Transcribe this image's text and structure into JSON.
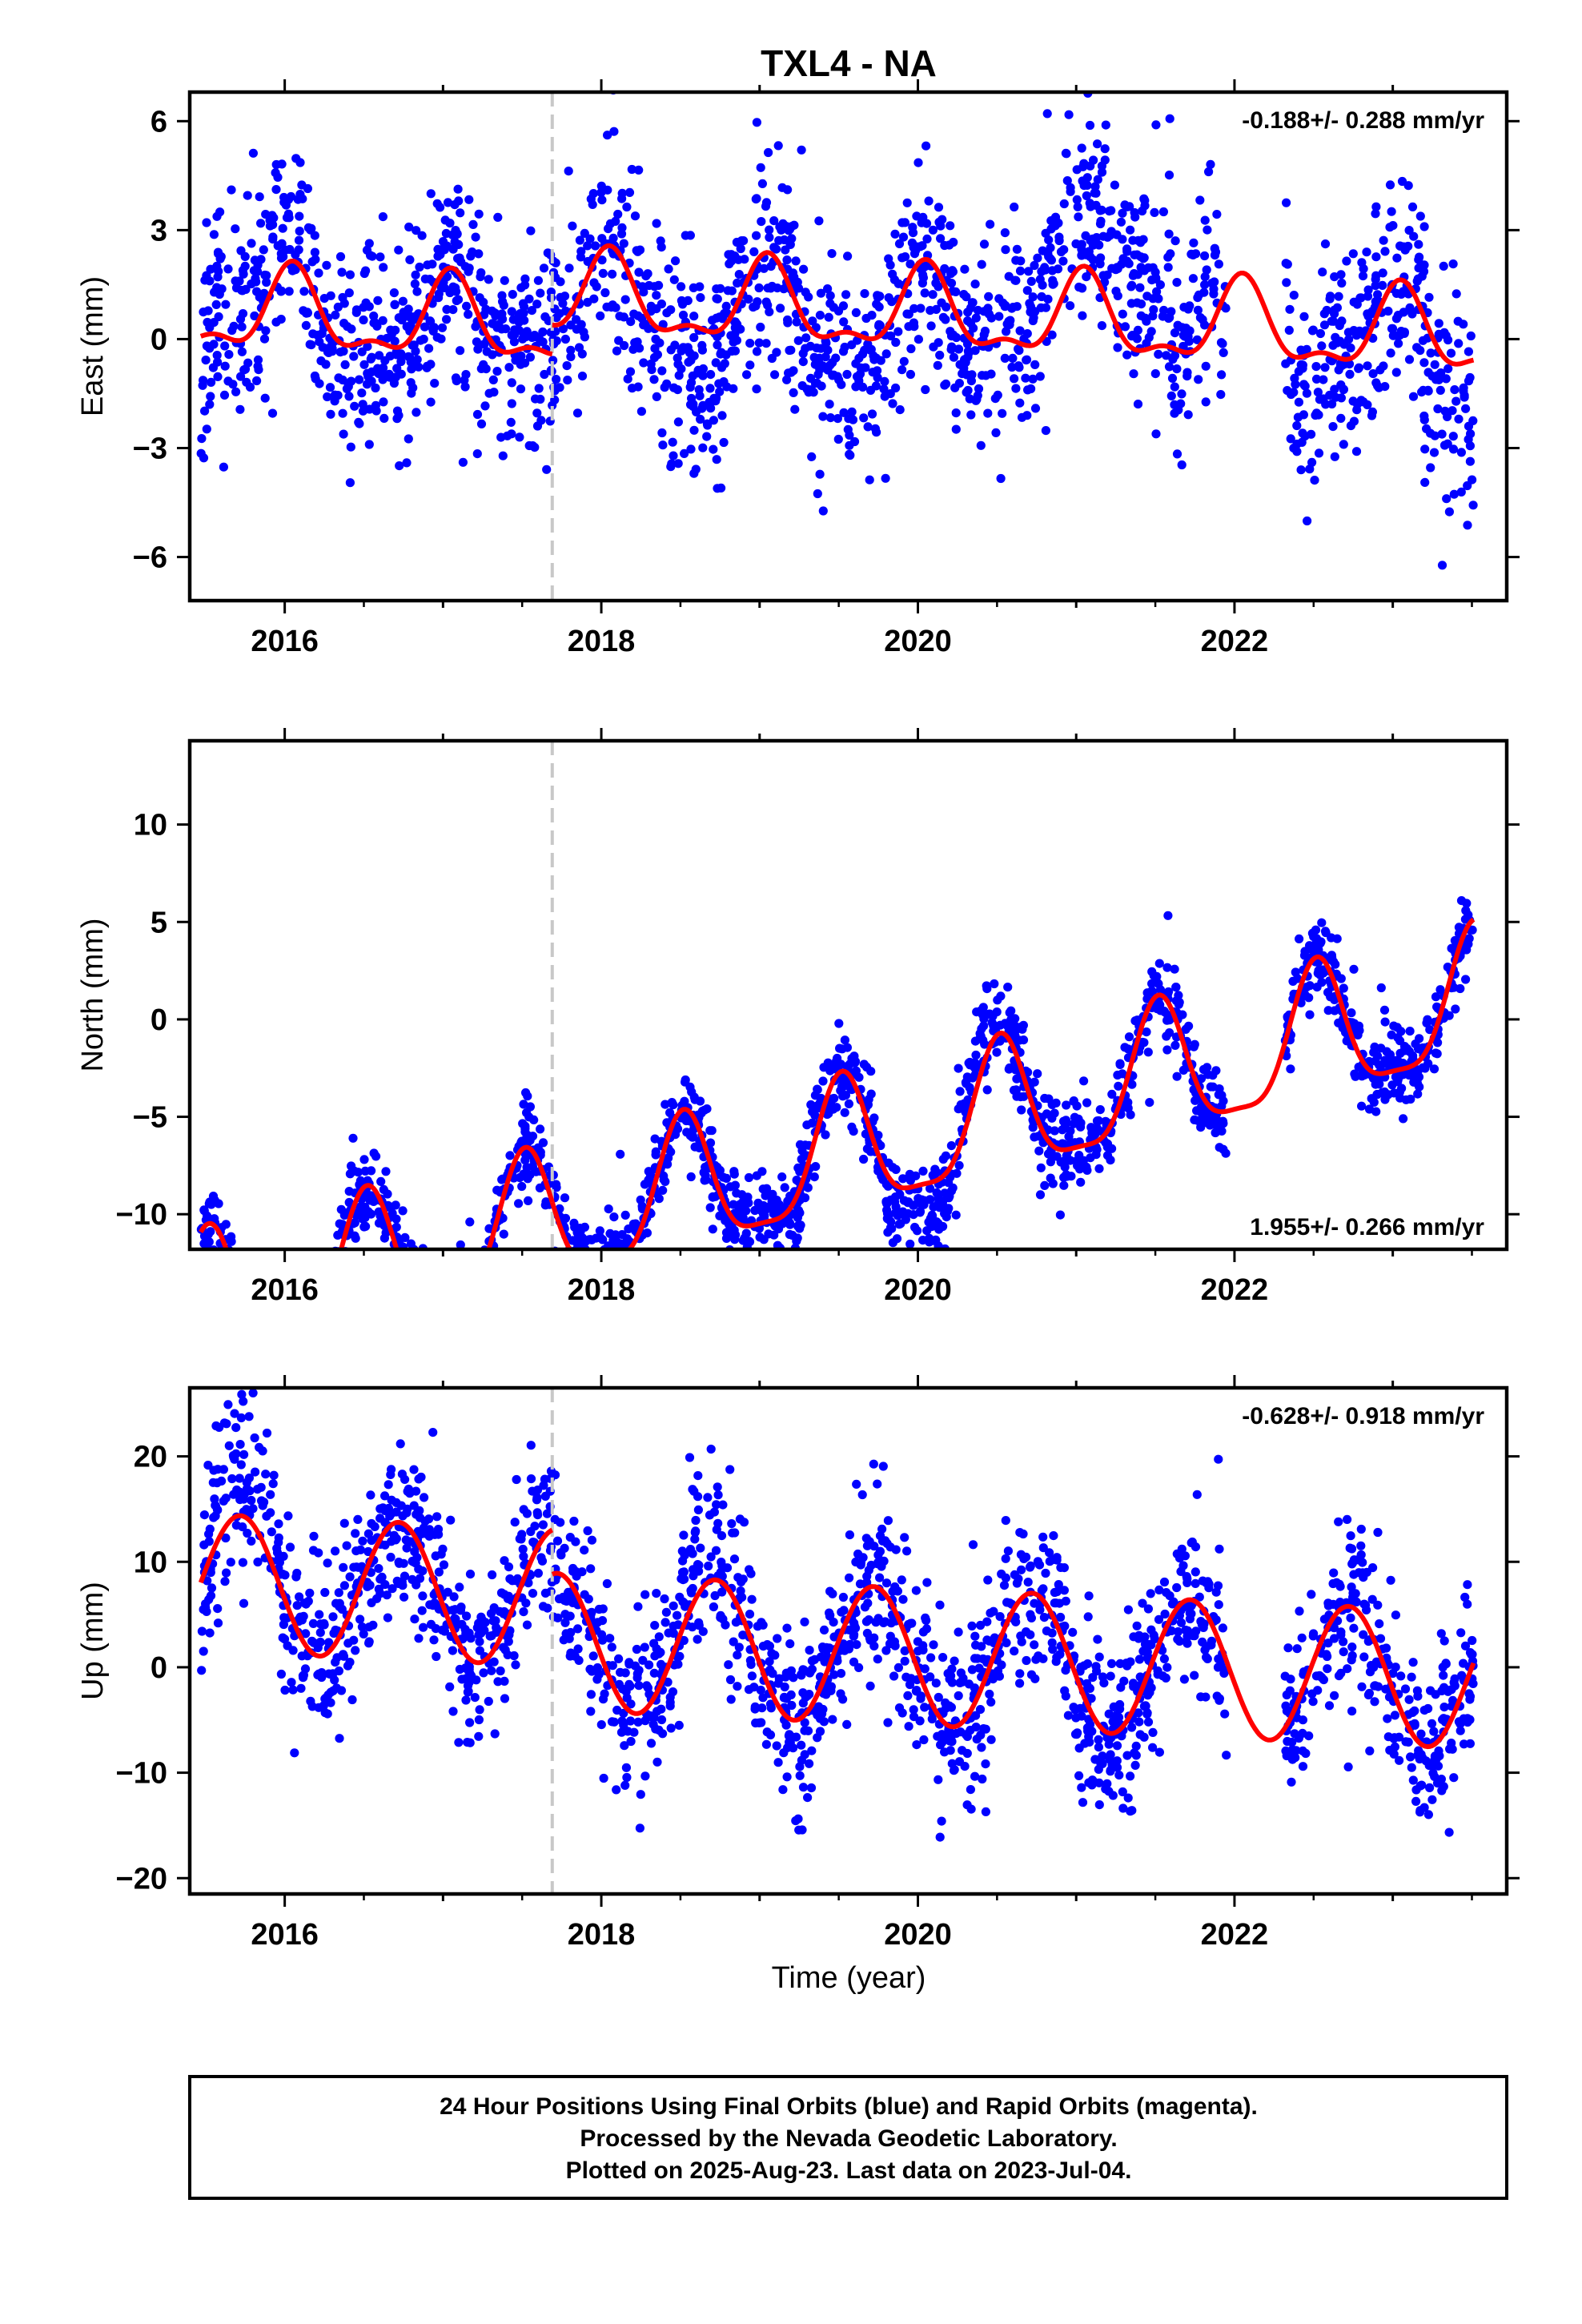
{
  "title": "TXL4 - NA",
  "xlabel": "Time (year)",
  "footer": {
    "line1": "24 Hour Positions Using Final Orbits (blue) and Rapid Orbits (magenta).",
    "line2": "Processed by the Nevada Geodetic Laboratory.",
    "line3": "Plotted on 2025-Aug-23. Last data on 2023-Jul-04."
  },
  "colors": {
    "points": "#0000ff",
    "model": "#ff0000",
    "event_line": "#c8c8c8",
    "axes": "#000000"
  },
  "chart_data": [
    {
      "type": "scatter",
      "panel": "east",
      "ylabel": "East (mm)",
      "rate": "-0.188+/- 0.288 mm/yr",
      "rate_position": "top-right",
      "xlim": [
        2015.4,
        2023.72
      ],
      "ylim": [
        -7.2,
        6.8
      ],
      "xticks": [
        2016,
        2018,
        2020,
        2022
      ],
      "xtick_labels": [
        "2016",
        "2018",
        "2020",
        "2022"
      ],
      "yticks": [
        -6,
        -3,
        0,
        3,
        6
      ],
      "ytick_labels": [
        "−6",
        "−3",
        "0",
        "3",
        "6"
      ],
      "event_line_x": 2017.69,
      "data_range": [
        2015.47,
        2023.51
      ],
      "model": {
        "trend_intercept": 0.0,
        "trend_slope": -0.188,
        "seasonal": [
          {
            "period_yr": 1.0,
            "amplitude": 1.05,
            "peak_year": 2016.05
          },
          {
            "period_yr": 0.5,
            "amplitude": 0.45,
            "peak_year": 2016.05
          }
        ],
        "offset_after_event": 0.8
      },
      "scatter_sigma": 1.45,
      "seasonal_anomalies": [
        {
          "start": 2020.75,
          "end": 2021.6,
          "shift": 1.9
        },
        {
          "start": 2021.7,
          "end": 2021.9,
          "shift": 1.4
        },
        {
          "start": 2015.55,
          "end": 2016.1,
          "shift": 0.8
        },
        {
          "start": 2016.2,
          "end": 2016.5,
          "shift": -0.6
        },
        {
          "start": 2018.4,
          "end": 2018.8,
          "shift": -1.0
        },
        {
          "start": 2019.3,
          "end": 2019.8,
          "shift": -0.9
        },
        {
          "start": 2022.35,
          "end": 2022.55,
          "shift": -1.5
        },
        {
          "start": 2023.2,
          "end": 2023.52,
          "shift": -1.6
        }
      ],
      "gaps": [
        [
          2021.95,
          2022.32
        ]
      ],
      "n_points": 2100,
      "seed": 11
    },
    {
      "type": "scatter",
      "panel": "north",
      "ylabel": "North (mm)",
      "rate": "1.955+/- 0.266 mm/yr",
      "rate_position": "bottom-right",
      "xlim": [
        2015.4,
        2023.72
      ],
      "ylim": [
        -11.8,
        14.3
      ],
      "xticks": [
        2016,
        2018,
        2020,
        2022
      ],
      "xtick_labels": [
        "2016",
        "2018",
        "2020",
        "2022"
      ],
      "yticks": [
        -10,
        -5,
        0,
        5,
        10
      ],
      "ytick_labels": [
        "−10",
        "−5",
        "0",
        "5",
        "10"
      ],
      "event_line_x": 2017.69,
      "data_range": [
        2015.47,
        2023.51
      ],
      "model": {
        "trend_intercept": -7.0,
        "trend_slope": 1.955,
        "seasonal": [
          {
            "period_yr": 1.0,
            "amplitude": 3.4,
            "peak_year": 2016.52
          },
          {
            "period_yr": 0.5,
            "amplitude": 0.9,
            "peak_year": 2016.52
          }
        ],
        "offset_after_event": 0.0
      },
      "scatter_sigma": 1.1,
      "seasonal_anomalies": [
        {
          "start": 2020.25,
          "end": 2020.55,
          "shift": 1.5
        },
        {
          "start": 2019.8,
          "end": 2020.2,
          "shift": -1.2
        }
      ],
      "gaps": [
        [
          2021.95,
          2022.32
        ]
      ],
      "n_points": 2100,
      "seed": 23
    },
    {
      "type": "scatter",
      "panel": "up",
      "ylabel": "Up (mm)",
      "rate": "-0.628+/- 0.918 mm/yr",
      "rate_position": "top-right",
      "xlim": [
        2015.4,
        2023.72
      ],
      "ylim": [
        -21.5,
        26.5
      ],
      "xticks": [
        2016,
        2018,
        2020,
        2022
      ],
      "xtick_labels": [
        "2016",
        "2018",
        "2020",
        "2022"
      ],
      "yticks": [
        -20,
        -10,
        0,
        10,
        20
      ],
      "ytick_labels": [
        "−20",
        "−10",
        "0",
        "10",
        "20"
      ],
      "event_line_x": 2017.69,
      "data_range": [
        2015.47,
        2023.51
      ],
      "model": {
        "trend_intercept": 5.5,
        "trend_slope": -0.628,
        "seasonal": [
          {
            "period_yr": 1.0,
            "amplitude": 6.5,
            "peak_year": 2015.72
          }
        ],
        "offset_after_event": -4.2
      },
      "scatter_sigma": 4.2,
      "seasonal_anomalies": [
        {
          "start": 2015.55,
          "end": 2015.95,
          "shift": 4.0
        },
        {
          "start": 2018.5,
          "end": 2018.75,
          "shift": 3.0
        }
      ],
      "gaps": [
        [
          2021.95,
          2022.32
        ]
      ],
      "n_points": 2100,
      "seed": 37
    }
  ]
}
